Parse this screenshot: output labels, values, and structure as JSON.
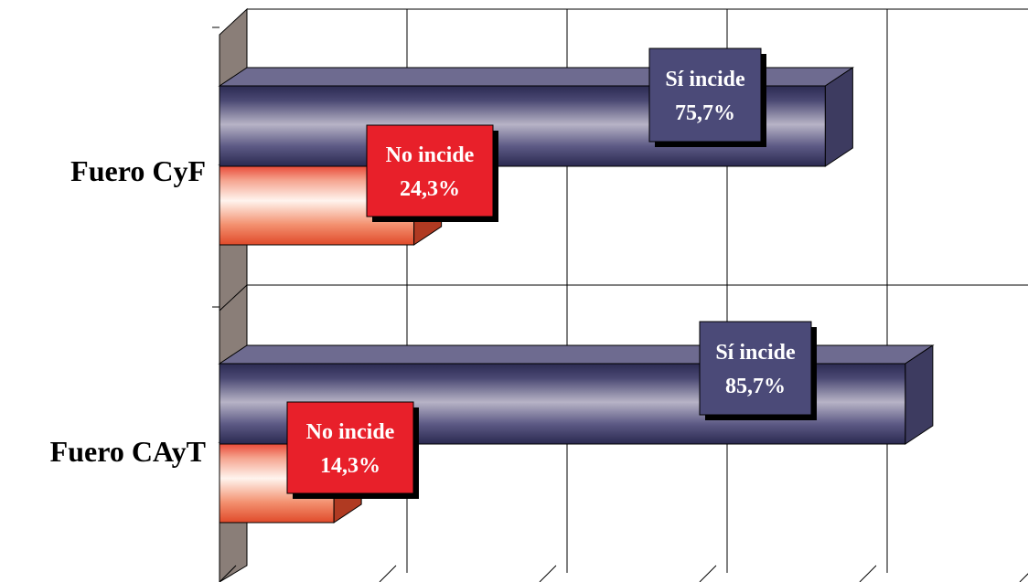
{
  "chart_data": {
    "type": "bar",
    "orientation": "horizontal",
    "style": "3d",
    "categories": [
      "Fuero CyF",
      "Fuero CAyT"
    ],
    "xlim": [
      0,
      100
    ],
    "grid": true,
    "series": [
      {
        "values": [
          75.7,
          85.7
        ],
        "labels": [
          "Sí incide",
          "Sí incide"
        ],
        "value_labels": [
          "75,7%",
          "85,7%"
        ],
        "color": "#4a4873"
      },
      {
        "values": [
          24.3,
          14.3
        ],
        "labels": [
          "No incide",
          "No incide"
        ],
        "value_labels": [
          "24,3%",
          "14,3%"
        ],
        "color": "#e8402e"
      }
    ],
    "colors": {
      "label_bg_si": "#4b4a78",
      "label_bg_no": "#e8202a",
      "wall": "#8a7e78"
    }
  }
}
